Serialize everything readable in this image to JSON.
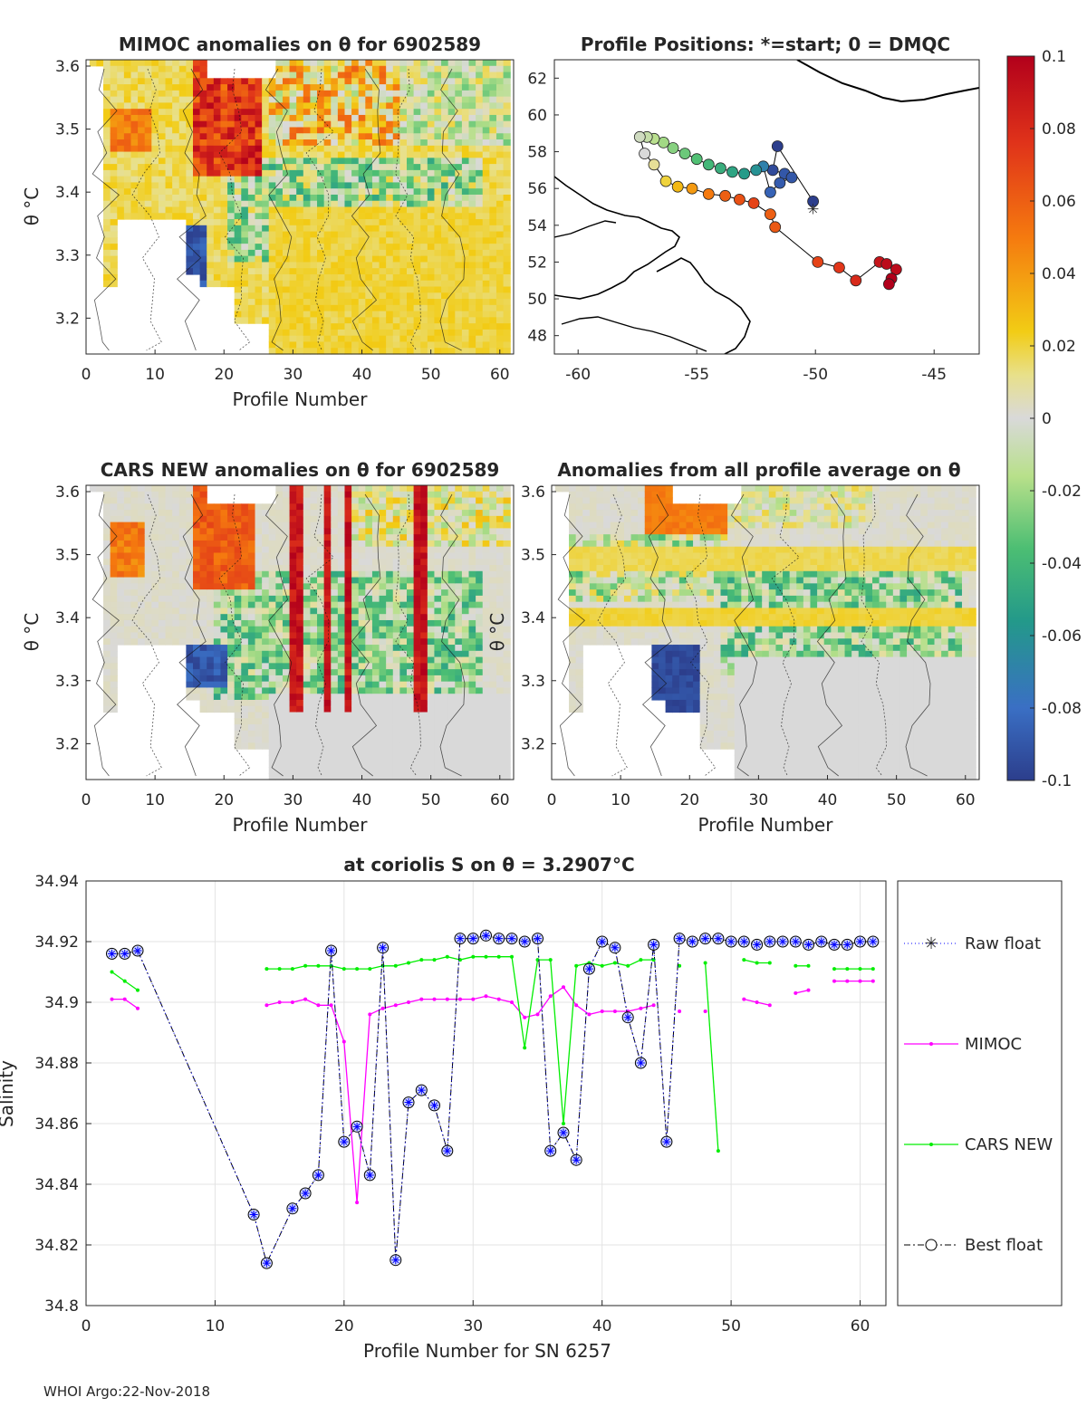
{
  "footer": "WHOI Argo:22-Nov-2018",
  "colorbar": {
    "ticks": [
      "0.1",
      "0.08",
      "0.06",
      "0.04",
      "0.02",
      "0",
      "-0.02",
      "-0.04",
      "-0.06",
      "-0.08",
      "-0.1"
    ],
    "range": [
      -0.1,
      0.1
    ]
  },
  "panels": {
    "mimoc": {
      "title": "MIMOC anomalies on θ  for 6902589",
      "xlabel": "Profile Number",
      "ylabel": "θ °C",
      "xticks": [
        "0",
        "10",
        "20",
        "30",
        "40",
        "50",
        "60"
      ],
      "yticks": [
        "3.6",
        "3.5",
        "3.4",
        "3.3",
        "3.2"
      ]
    },
    "positions": {
      "title": "Profile Positions: *=start; 0 = DMQC",
      "xticks": [
        "-60",
        "-55",
        "-50",
        "-45"
      ],
      "yticks": [
        "62",
        "60",
        "58",
        "56",
        "54",
        "52",
        "50",
        "48"
      ]
    },
    "cars": {
      "title": "CARS NEW anomalies on θ for 6902589",
      "xlabel": "Profile Number",
      "ylabel": "θ °C",
      "xticks": [
        "0",
        "10",
        "20",
        "30",
        "40",
        "50",
        "60"
      ],
      "yticks": [
        "3.6",
        "3.5",
        "3.4",
        "3.3",
        "3.2"
      ]
    },
    "allavg": {
      "title": "Anomalies from all profile average on θ",
      "xlabel": "Profile Number",
      "ylabel": "θ °C",
      "xticks": [
        "0",
        "10",
        "20",
        "30",
        "40",
        "50",
        "60"
      ],
      "yticks": [
        "3.6",
        "3.5",
        "3.4",
        "3.3",
        "3.2"
      ]
    }
  },
  "chart_data": {
    "type": "line",
    "title": "at coriolis S on θ = 3.2907°C",
    "xlabel": "Profile Number for SN 6257",
    "ylabel": "Salinity",
    "xlim": [
      0,
      62
    ],
    "ylim": [
      34.8,
      34.94
    ],
    "xticks": [
      "0",
      "10",
      "20",
      "30",
      "40",
      "50",
      "60"
    ],
    "yticks": [
      "34.94",
      "34.92",
      "34.9",
      "34.88",
      "34.86",
      "34.84",
      "34.82",
      "34.8"
    ],
    "grid": true,
    "legend_position": "right",
    "series": [
      {
        "name": "Raw float",
        "color": "#0000ff",
        "style": "dotted-asterisk",
        "x": [
          2,
          3,
          4,
          13,
          14,
          16,
          17,
          18,
          19,
          20,
          21,
          22,
          23,
          24,
          25,
          26,
          27,
          28,
          29,
          30,
          31,
          32,
          33,
          34,
          35,
          36,
          37,
          38,
          39,
          40,
          41,
          42,
          43,
          44,
          45,
          46,
          47,
          48,
          49,
          50,
          51,
          52,
          53,
          54,
          55,
          56,
          57,
          58,
          59,
          60,
          61
        ],
        "y": [
          34.916,
          34.916,
          34.917,
          34.83,
          34.814,
          34.832,
          34.837,
          34.843,
          34.917,
          34.854,
          34.859,
          34.843,
          34.918,
          34.815,
          34.867,
          34.871,
          34.866,
          34.851,
          34.921,
          34.921,
          34.922,
          34.921,
          34.921,
          34.92,
          34.921,
          34.851,
          34.857,
          34.848,
          34.911,
          34.92,
          34.918,
          34.895,
          34.88,
          34.919,
          34.854,
          34.921,
          34.92,
          34.921,
          34.921,
          34.92,
          34.92,
          34.919,
          34.92,
          34.92,
          34.92,
          34.919,
          34.92,
          34.919,
          34.919,
          34.92,
          34.92
        ]
      },
      {
        "name": "MIMOC",
        "color": "#ff00ff",
        "style": "solid-dot",
        "segments": [
          {
            "x": [
              2,
              3,
              4
            ],
            "y": [
              34.901,
              34.901,
              34.898
            ]
          },
          {
            "x": [
              14,
              15,
              16,
              17,
              18,
              19,
              20,
              21,
              22,
              23,
              24,
              25,
              26,
              27,
              28,
              29,
              30,
              31,
              32,
              33,
              34,
              35,
              36,
              37,
              38,
              39,
              40,
              41,
              42,
              43,
              44
            ],
            "y": [
              34.899,
              34.9,
              34.9,
              34.901,
              34.899,
              34.899,
              34.887,
              34.834,
              34.896,
              34.898,
              34.899,
              34.9,
              34.901,
              34.901,
              34.901,
              34.901,
              34.901,
              34.902,
              34.901,
              34.9,
              34.895,
              34.896,
              34.902,
              34.905,
              34.899,
              34.896,
              34.897,
              34.897,
              34.897,
              34.898,
              34.899
            ]
          },
          {
            "x": [
              46
            ],
            "y": [
              34.897
            ]
          },
          {
            "x": [
              48
            ],
            "y": [
              34.897
            ]
          },
          {
            "x": [
              51,
              52,
              53
            ],
            "y": [
              34.901,
              34.9,
              34.899
            ]
          },
          {
            "x": [
              55,
              56
            ],
            "y": [
              34.903,
              34.904
            ]
          },
          {
            "x": [
              58,
              59,
              60,
              61
            ],
            "y": [
              34.907,
              34.907,
              34.907,
              34.907
            ]
          }
        ]
      },
      {
        "name": "CARS NEW",
        "color": "#00ee00",
        "style": "solid-dot",
        "segments": [
          {
            "x": [
              2,
              3,
              4
            ],
            "y": [
              34.91,
              34.907,
              34.904
            ]
          },
          {
            "x": [
              14,
              15,
              16,
              17,
              18,
              19,
              20,
              21,
              22,
              23,
              24,
              25,
              26,
              27,
              28,
              29,
              30,
              31,
              32,
              33,
              34,
              35,
              36,
              37,
              38,
              39,
              40,
              41,
              42,
              43,
              44
            ],
            "y": [
              34.911,
              34.911,
              34.911,
              34.912,
              34.912,
              34.912,
              34.911,
              34.911,
              34.911,
              34.912,
              34.912,
              34.913,
              34.914,
              34.914,
              34.915,
              34.914,
              34.915,
              34.915,
              34.915,
              34.915,
              34.885,
              34.914,
              34.914,
              34.86,
              34.912,
              34.913,
              34.912,
              34.913,
              34.912,
              34.914,
              34.914
            ]
          },
          {
            "x": [
              46
            ],
            "y": [
              34.912
            ]
          },
          {
            "x": [
              48,
              49
            ],
            "y": [
              34.913,
              34.851
            ]
          },
          {
            "x": [
              51,
              52,
              53
            ],
            "y": [
              34.914,
              34.913,
              34.913
            ]
          },
          {
            "x": [
              55,
              56
            ],
            "y": [
              34.912,
              34.912
            ]
          },
          {
            "x": [
              58,
              59,
              60,
              61
            ],
            "y": [
              34.911,
              34.911,
              34.911,
              34.911
            ]
          }
        ]
      },
      {
        "name": "Best float",
        "color": "#000000",
        "style": "dashdot-circle",
        "x": [
          2,
          3,
          4,
          13,
          14,
          16,
          17,
          18,
          19,
          20,
          21,
          22,
          23,
          24,
          25,
          26,
          27,
          28,
          29,
          30,
          31,
          32,
          33,
          34,
          35,
          36,
          37,
          38,
          39,
          40,
          41,
          42,
          43,
          44,
          45,
          46,
          47,
          48,
          49,
          50,
          51,
          52,
          53,
          54,
          55,
          56,
          57,
          58,
          59,
          60,
          61
        ],
        "y": [
          34.916,
          34.916,
          34.917,
          34.83,
          34.814,
          34.832,
          34.837,
          34.843,
          34.917,
          34.854,
          34.859,
          34.843,
          34.918,
          34.815,
          34.867,
          34.871,
          34.866,
          34.851,
          34.921,
          34.921,
          34.922,
          34.921,
          34.921,
          34.92,
          34.921,
          34.851,
          34.857,
          34.848,
          34.911,
          34.92,
          34.918,
          34.895,
          34.88,
          34.919,
          34.854,
          34.921,
          34.92,
          34.921,
          34.921,
          34.92,
          34.92,
          34.919,
          34.92,
          34.92,
          34.92,
          34.919,
          34.92,
          34.919,
          34.919,
          34.92,
          34.92
        ]
      }
    ]
  },
  "map_points": {
    "lon": [
      -50.1,
      -51.6,
      -51.8,
      -51.3,
      -51.0,
      -51.5,
      -51.9,
      -52.2,
      -52.5,
      -53.0,
      -53.5,
      -54.0,
      -54.5,
      -55.0,
      -55.5,
      -56.0,
      -56.4,
      -56.8,
      -57.1,
      -57.4,
      -57.2,
      -56.8,
      -56.3,
      -55.8,
      -55.2,
      -54.5,
      -53.8,
      -53.2,
      -52.6,
      -51.9,
      -51.7,
      -49.9,
      -49.0,
      -48.3,
      -47.3,
      -47.0,
      -46.6,
      -46.8,
      -46.9
    ],
    "lat": [
      55.3,
      58.3,
      57.0,
      56.8,
      56.6,
      56.3,
      55.8,
      57.2,
      57.0,
      56.8,
      56.9,
      57.1,
      57.3,
      57.6,
      57.9,
      58.2,
      58.5,
      58.7,
      58.8,
      58.8,
      57.9,
      57.3,
      56.4,
      56.1,
      56.0,
      55.7,
      55.6,
      55.4,
      55.2,
      54.6,
      53.9,
      52.0,
      51.7,
      51.0,
      52.0,
      51.9,
      51.6,
      51.1,
      50.8
    ],
    "values": [
      -0.1,
      -0.1,
      -0.095,
      -0.09,
      -0.09,
      -0.088,
      -0.085,
      -0.07,
      -0.06,
      -0.055,
      -0.05,
      -0.045,
      -0.04,
      -0.035,
      -0.03,
      -0.025,
      -0.02,
      -0.015,
      -0.01,
      -0.005,
      0.0,
      0.01,
      0.02,
      0.03,
      0.04,
      0.05,
      0.06,
      0.065,
      0.07,
      0.06,
      0.062,
      0.07,
      0.075,
      0.08,
      0.09,
      0.095,
      0.095,
      0.1,
      0.1
    ]
  }
}
